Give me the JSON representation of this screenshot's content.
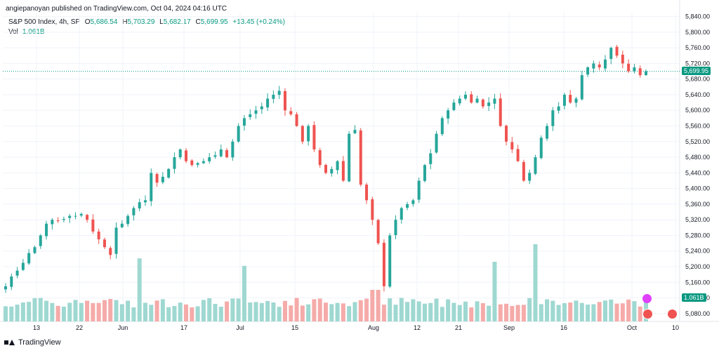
{
  "header": {
    "text": "angiepanoyan published on TradingView.com, Oct 04, 2024 04:16 UTC"
  },
  "legend": {
    "symbol": "S&P 500 Index, 4h, SP",
    "open_label": "O",
    "open": "5,686.54",
    "high_label": "H",
    "high": "5,703.29",
    "low_label": "L",
    "low": "5,682.17",
    "close_label": "C",
    "close": "5,699.95",
    "change": "+13.45 (+0.24%)",
    "vol_label": "Vol",
    "vol_value": "1.061B"
  },
  "price_badge": "5,699.95",
  "vol_badge": "1.061B",
  "footer": {
    "brand": "TradingView"
  },
  "colors": {
    "up": "#26a69a",
    "down": "#ef5350",
    "vol_up": "#9ed8d1",
    "vol_down": "#f5aba9",
    "badge": "#089981"
  },
  "chart_data": {
    "type": "candlestick",
    "title": "S&P 500 Index, 4h, SP",
    "y_ticks": [
      "5,840.00",
      "5,800.00",
      "5,760.00",
      "5,720.00",
      "5,680.00",
      "5,640.00",
      "5,600.00",
      "5,560.00",
      "5,520.00",
      "5,480.00",
      "5,440.00",
      "5,400.00",
      "5,360.00",
      "5,320.00",
      "5,280.00",
      "5,240.00",
      "5,200.00",
      "5,160.00",
      "5,120.00",
      "5,080.00"
    ],
    "ylim": [
      5060,
      5850
    ],
    "x_ticks": [
      "13",
      "22",
      "Jun",
      "17",
      "Jul",
      "15",
      "Aug",
      "12",
      "21",
      "Sep",
      "16",
      "Oct",
      "10"
    ],
    "last_price": 5699.95,
    "close_path": [
      5150,
      5175,
      5190,
      5210,
      5235,
      5250,
      5280,
      5310,
      5320,
      5318,
      5322,
      5330,
      5330,
      5335,
      5320,
      5290,
      5270,
      5250,
      5230,
      5300,
      5310,
      5330,
      5350,
      5365,
      5370,
      5440,
      5415,
      5430,
      5450,
      5480,
      5500,
      5470,
      5460,
      5465,
      5470,
      5480,
      5485,
      5500,
      5480,
      5520,
      5560,
      5580,
      5590,
      5600,
      5610,
      5630,
      5640,
      5650,
      5600,
      5590,
      5560,
      5520,
      5560,
      5500,
      5460,
      5440,
      5450,
      5470,
      5420,
      5540,
      5550,
      5410,
      5370,
      5320,
      5260,
      5150,
      5280,
      5320,
      5350,
      5360,
      5370,
      5420,
      5460,
      5490,
      5540,
      5580,
      5600,
      5620,
      5630,
      5640,
      5620,
      5630,
      5610,
      5620,
      5630,
      5560,
      5520,
      5500,
      5470,
      5420,
      5440,
      5480,
      5530,
      5560,
      5600,
      5610,
      5640,
      5620,
      5630,
      5690,
      5710,
      5720,
      5710,
      5730,
      5760,
      5740,
      5720,
      5700,
      5710,
      5690,
      5700
    ]
  }
}
